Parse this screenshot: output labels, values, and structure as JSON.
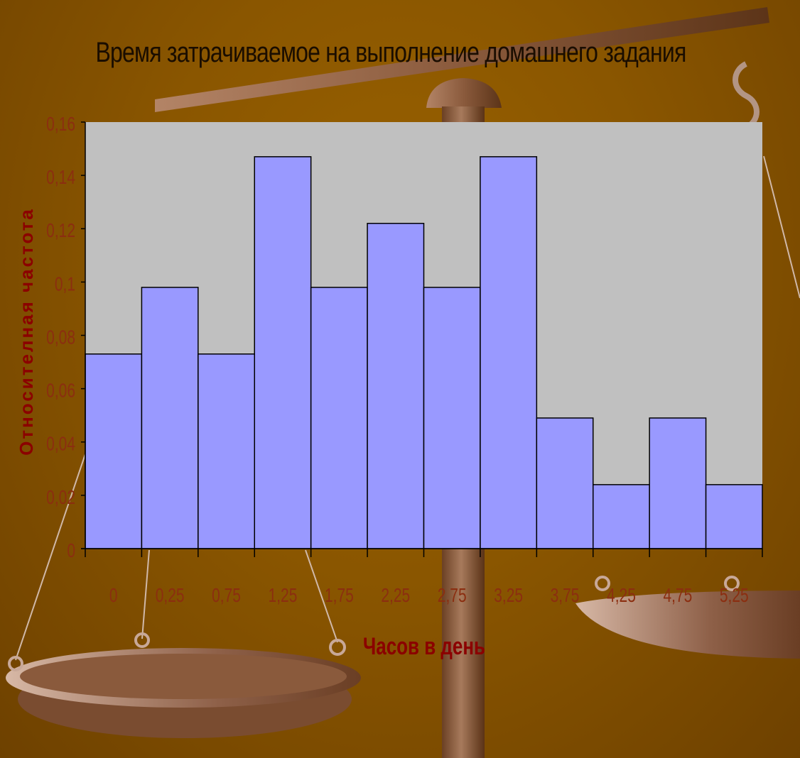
{
  "chart_data": {
    "type": "bar",
    "title": "Время затрачиваемое на выполнение домашнего задания",
    "xlabel": "Часов в день",
    "ylabel": "Относителная частота",
    "categories": [
      "0",
      "0,25",
      "0,75",
      "1,25",
      "1,75",
      "2,25",
      "2,75",
      "3,25",
      "3,75",
      "4,25",
      "4,75",
      "5,25"
    ],
    "values": [
      0.073,
      0.098,
      0.073,
      0.147,
      0.098,
      0.122,
      0.098,
      0.147,
      0.049,
      0.024,
      0.049,
      0.024
    ],
    "ylim": [
      0,
      0.16
    ],
    "yticks": [
      "0",
      "0,02",
      "0,04",
      "0,06",
      "0,08",
      "0,1",
      "0,12",
      "0,14",
      "0,16"
    ],
    "grid": false,
    "legend": "none"
  },
  "colors": {
    "bar_fill": "#9999ff",
    "plot_bg": "#c0c0c0",
    "tick_label": "#8b2e10",
    "axis_title": "#8b0000",
    "title": "#1a0d00"
  }
}
